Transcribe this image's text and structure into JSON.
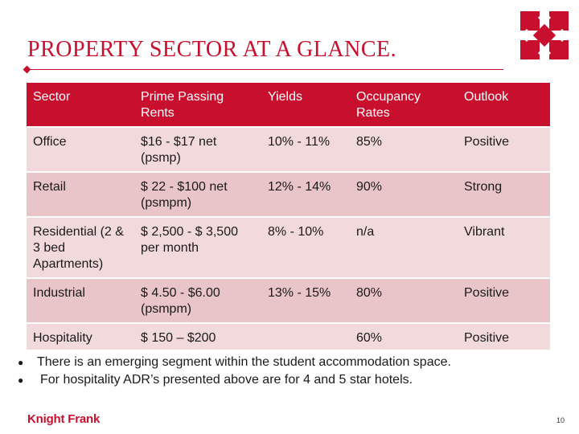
{
  "slide": {
    "title": "PROPERTY SECTOR AT A GLANCE.",
    "page_number": "10",
    "brand": "Knight Frank",
    "colors": {
      "accent": "#c8102e",
      "row_light": "#f2d9db",
      "row_dark": "#e9c4c8"
    }
  },
  "table": {
    "headers": [
      "Sector",
      "Prime Passing Rents",
      "Yields",
      "Occupancy Rates",
      "Outlook"
    ],
    "rows": [
      [
        "Office",
        "$16 - $17 net (psmp)",
        "10% - 11%",
        "85%",
        "Positive"
      ],
      [
        "Retail",
        "$ 22 - $100 net (psmpm)",
        "12% - 14%",
        "90%",
        "Strong"
      ],
      [
        "Residential (2 & 3 bed Apartments)",
        "$ 2,500 - $ 3,500 per month",
        "8% - 10%",
        "n/a",
        "Vibrant"
      ],
      [
        "Industrial",
        "$ 4.50 - $6.00 (psmpm)",
        "13% - 15%",
        "80%",
        "Positive"
      ],
      [
        "Hospitality",
        "$ 150 – $200",
        "",
        "60%",
        "Positive"
      ]
    ]
  },
  "notes": [
    "There is an emerging segment within the student accommodation space.",
    "For hospitality ADR’s presented above are for 4 and 5 star hotels."
  ]
}
